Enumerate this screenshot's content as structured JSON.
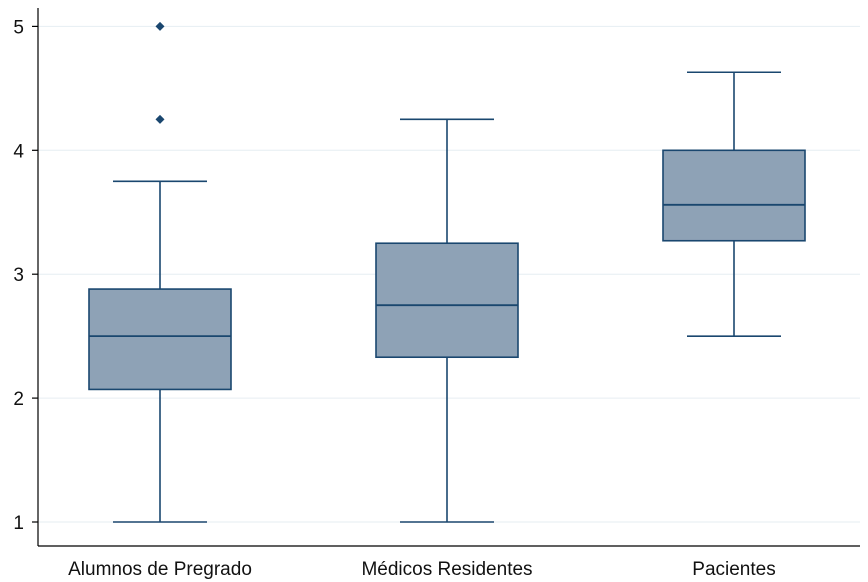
{
  "chart_data": {
    "type": "boxplot",
    "title": "",
    "xlabel": "",
    "ylabel": "",
    "ylim": [
      0.85,
      5.15
    ],
    "yticks": [
      1,
      2,
      3,
      4,
      5
    ],
    "grid": true,
    "categories": [
      "Alumnos de Pregrado",
      "Médicos Residentes",
      "Pacientes"
    ],
    "boxes": [
      {
        "category": "Alumnos de Pregrado",
        "whisker_low": 1.0,
        "q1": 2.07,
        "median": 2.5,
        "q3": 2.88,
        "whisker_high": 3.75,
        "outliers": [
          4.25,
          5.0
        ]
      },
      {
        "category": "Médicos Residentes",
        "whisker_low": 1.0,
        "q1": 2.33,
        "median": 2.75,
        "q3": 3.25,
        "whisker_high": 4.25,
        "outliers": []
      },
      {
        "category": "Pacientes",
        "whisker_low": 2.5,
        "q1": 3.27,
        "median": 3.56,
        "q3": 4.0,
        "whisker_high": 4.63,
        "outliers": []
      }
    ],
    "colors": {
      "box_fill": "#8ea2b6",
      "line": "#1a476f",
      "grid": "#e6eef2",
      "axis": "#000000"
    }
  }
}
